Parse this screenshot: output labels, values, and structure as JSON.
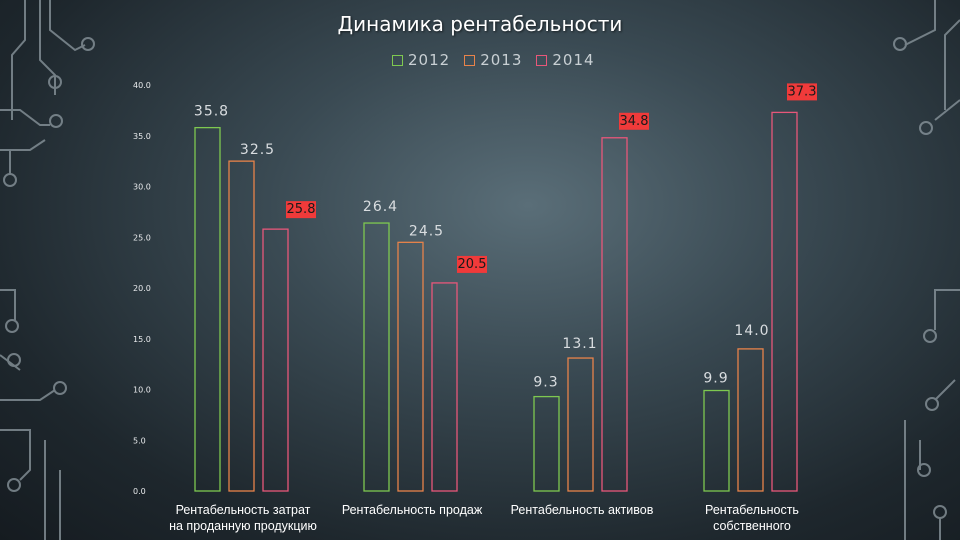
{
  "chart_data": {
    "type": "bar",
    "title": "Динамика рентабельности",
    "categories": [
      [
        "Рентабельность затрат",
        "на проданную продукцию"
      ],
      [
        "Рентабельность продаж"
      ],
      [
        "Рентабельность активов"
      ],
      [
        "Рентабельность",
        "собственного"
      ]
    ],
    "series": [
      {
        "name": "2012",
        "color": "#7ec850",
        "values": [
          35.8,
          26.4,
          9.3,
          9.9
        ],
        "labels": [
          "35.8",
          "26.4",
          "9.3",
          "9.9"
        ]
      },
      {
        "name": "2013",
        "color": "#e8834a",
        "values": [
          32.5,
          24.5,
          13.1,
          14.0
        ],
        "labels": [
          "32.5",
          "24.5",
          "13.1",
          "14.0"
        ]
      },
      {
        "name": "2014",
        "color": "#e8577a",
        "values": [
          25.8,
          20.5,
          34.8,
          37.3
        ],
        "labels": [
          "25.8",
          "20.5",
          "34.8",
          "37.3"
        ]
      }
    ],
    "highlighted_labels": [
      "25.8",
      "20.5",
      "34.8",
      "37.3"
    ],
    "highlight_color": "#f03a3a",
    "ylim": [
      0,
      40
    ],
    "yticks": [
      "0.0",
      "5.0",
      "10.0",
      "15.0",
      "20.0",
      "25.0",
      "30.0",
      "35.0",
      "40.0"
    ],
    "grid": false,
    "legend_position": "top"
  }
}
